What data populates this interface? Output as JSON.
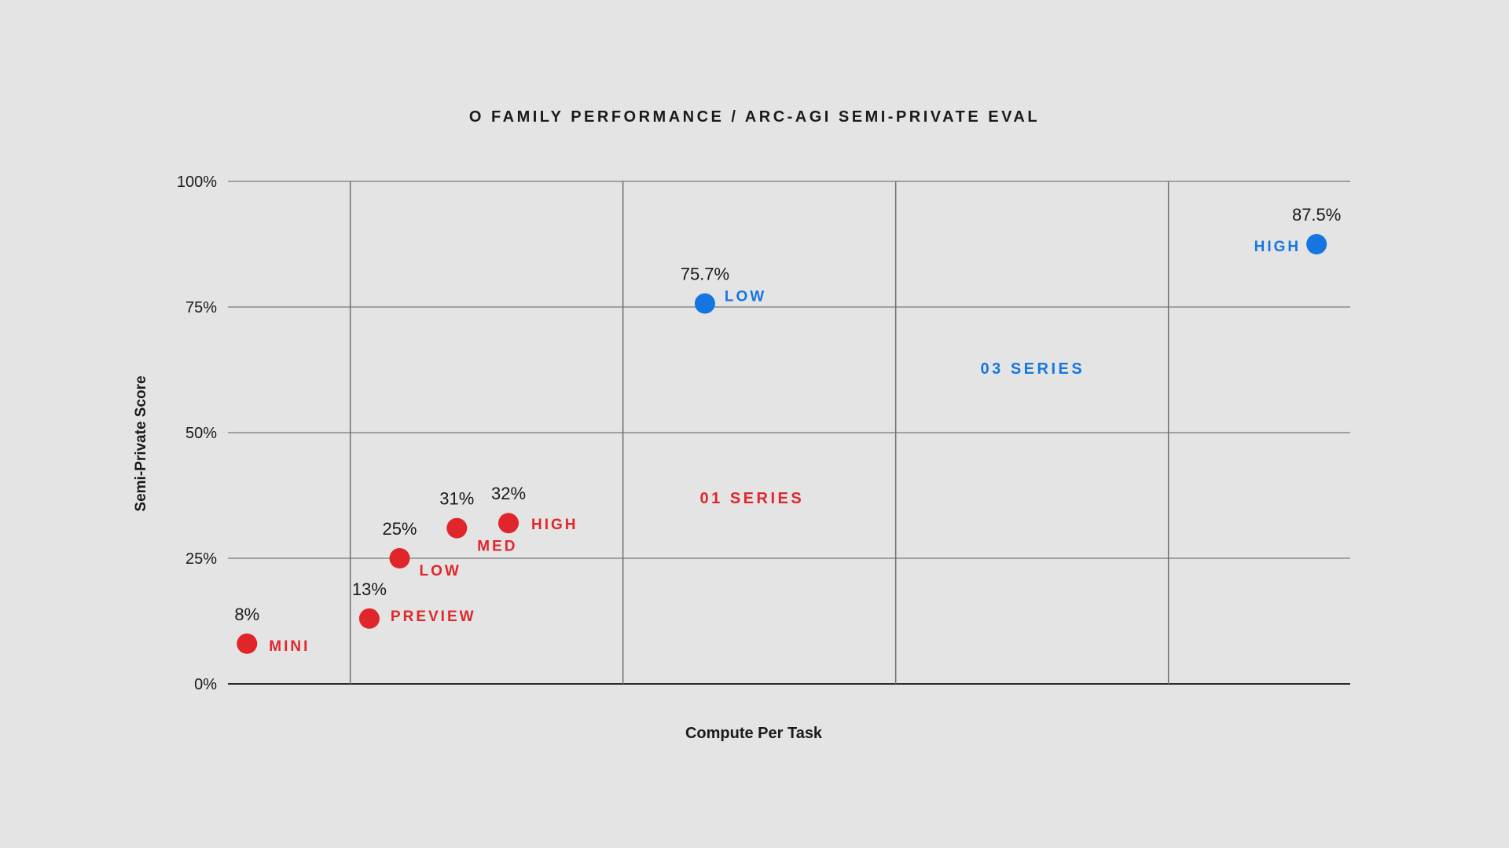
{
  "chart_data": {
    "type": "scatter",
    "title": "O FAMILY PERFORMANCE / ARC-AGI SEMI-PRIVATE EVAL",
    "xlabel": "Compute Per Task",
    "ylabel": "Semi-Private Score",
    "ylim": [
      0,
      100
    ],
    "yticks": [
      {
        "value": 0,
        "label": "0%"
      },
      {
        "value": 25,
        "label": "25%"
      },
      {
        "value": 50,
        "label": "50%"
      },
      {
        "value": 75,
        "label": "75%"
      },
      {
        "value": 100,
        "label": "100%"
      }
    ],
    "xlim": [
      0,
      100
    ],
    "x_gridlines": [
      10.9,
      35.2,
      59.5,
      83.8
    ],
    "grid": true,
    "series": [
      {
        "name": "01 SERIES",
        "color": "#e0262b",
        "series_label_position": {
          "x": 46.7,
          "y": 37
        },
        "points": [
          {
            "x": 1.7,
            "y": 8,
            "value_label": "8%",
            "tag": "MINI"
          },
          {
            "x": 12.6,
            "y": 13,
            "value_label": "13%",
            "tag": "PREVIEW"
          },
          {
            "x": 15.3,
            "y": 25,
            "value_label": "25%",
            "tag": "LOW"
          },
          {
            "x": 20.4,
            "y": 31,
            "value_label": "31%",
            "tag": "MED"
          },
          {
            "x": 25.0,
            "y": 32,
            "value_label": "32%",
            "tag": "HIGH"
          }
        ]
      },
      {
        "name": "03 SERIES",
        "color": "#1576e2",
        "series_label_position": {
          "x": 71.7,
          "y": 62.8
        },
        "points": [
          {
            "x": 42.5,
            "y": 75.7,
            "value_label": "75.7%",
            "tag": "LOW"
          },
          {
            "x": 97.0,
            "y": 87.5,
            "value_label": "87.5%",
            "tag": "HIGH"
          }
        ]
      }
    ]
  }
}
